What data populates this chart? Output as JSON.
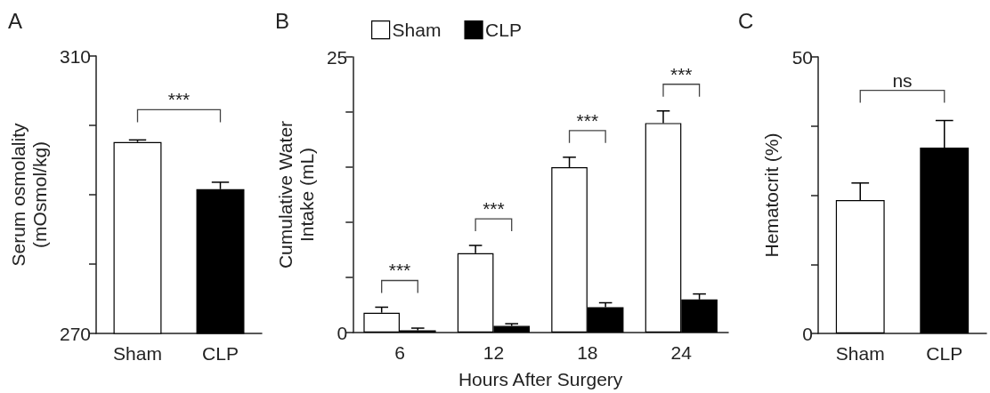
{
  "chart_data": [
    {
      "type": "bar",
      "title": "A",
      "ylabel": "Serum osmolality\n(mOsmol/kg)",
      "categories": [
        "Sham",
        "CLP"
      ],
      "values": [
        297.6,
        290.8
      ],
      "colors": [
        "#ffffff",
        "#000000"
      ],
      "errors": [
        0.3,
        1.0
      ],
      "ylim": [
        270,
        310
      ],
      "yticks": [
        270,
        {
          "value": 280,
          "label": null
        },
        {
          "value": 290,
          "label": null
        },
        {
          "value": 300,
          "label": null
        },
        310
      ],
      "annotations": [
        "***"
      ]
    },
    {
      "type": "bar",
      "title": "B",
      "xlabel": "Hours After Surgery",
      "ylabel": "Cumulative Water\nIntake (mL)",
      "categories": [
        "6",
        "12",
        "18",
        "24"
      ],
      "legend": "top",
      "series": [
        {
          "name": "Sham",
          "color": "#ffffff",
          "values": [
            1.8,
            7.2,
            15.0,
            19.0
          ],
          "errors": [
            0.5,
            0.7,
            0.9,
            1.1
          ]
        },
        {
          "name": "CLP",
          "color": "#000000",
          "values": [
            0.2,
            0.6,
            2.3,
            3.0
          ],
          "errors": [
            0.2,
            0.2,
            0.4,
            0.5
          ]
        }
      ],
      "ylim": [
        0,
        25
      ],
      "yticks": [
        0,
        {
          "value": 5,
          "label": null
        },
        {
          "value": 10,
          "label": null
        },
        {
          "value": 15,
          "label": null
        },
        {
          "value": 20,
          "label": null
        },
        25
      ],
      "annotations": [
        "***",
        "***",
        "***",
        "***"
      ]
    },
    {
      "type": "bar",
      "title": "C",
      "ylabel": "Hematocrit (%)",
      "categories": [
        "Sham",
        "CLP"
      ],
      "values": [
        24.1,
        33.6
      ],
      "colors": [
        "#ffffff",
        "#000000"
      ],
      "errors": [
        3.1,
        4.9
      ],
      "ylim": [
        0,
        50
      ],
      "yticks": [
        0,
        {
          "value": 12.5,
          "label": null
        },
        {
          "value": 25,
          "label": null
        },
        {
          "value": 37.5,
          "label": null
        },
        50
      ],
      "annotations": [
        "ns"
      ]
    }
  ]
}
